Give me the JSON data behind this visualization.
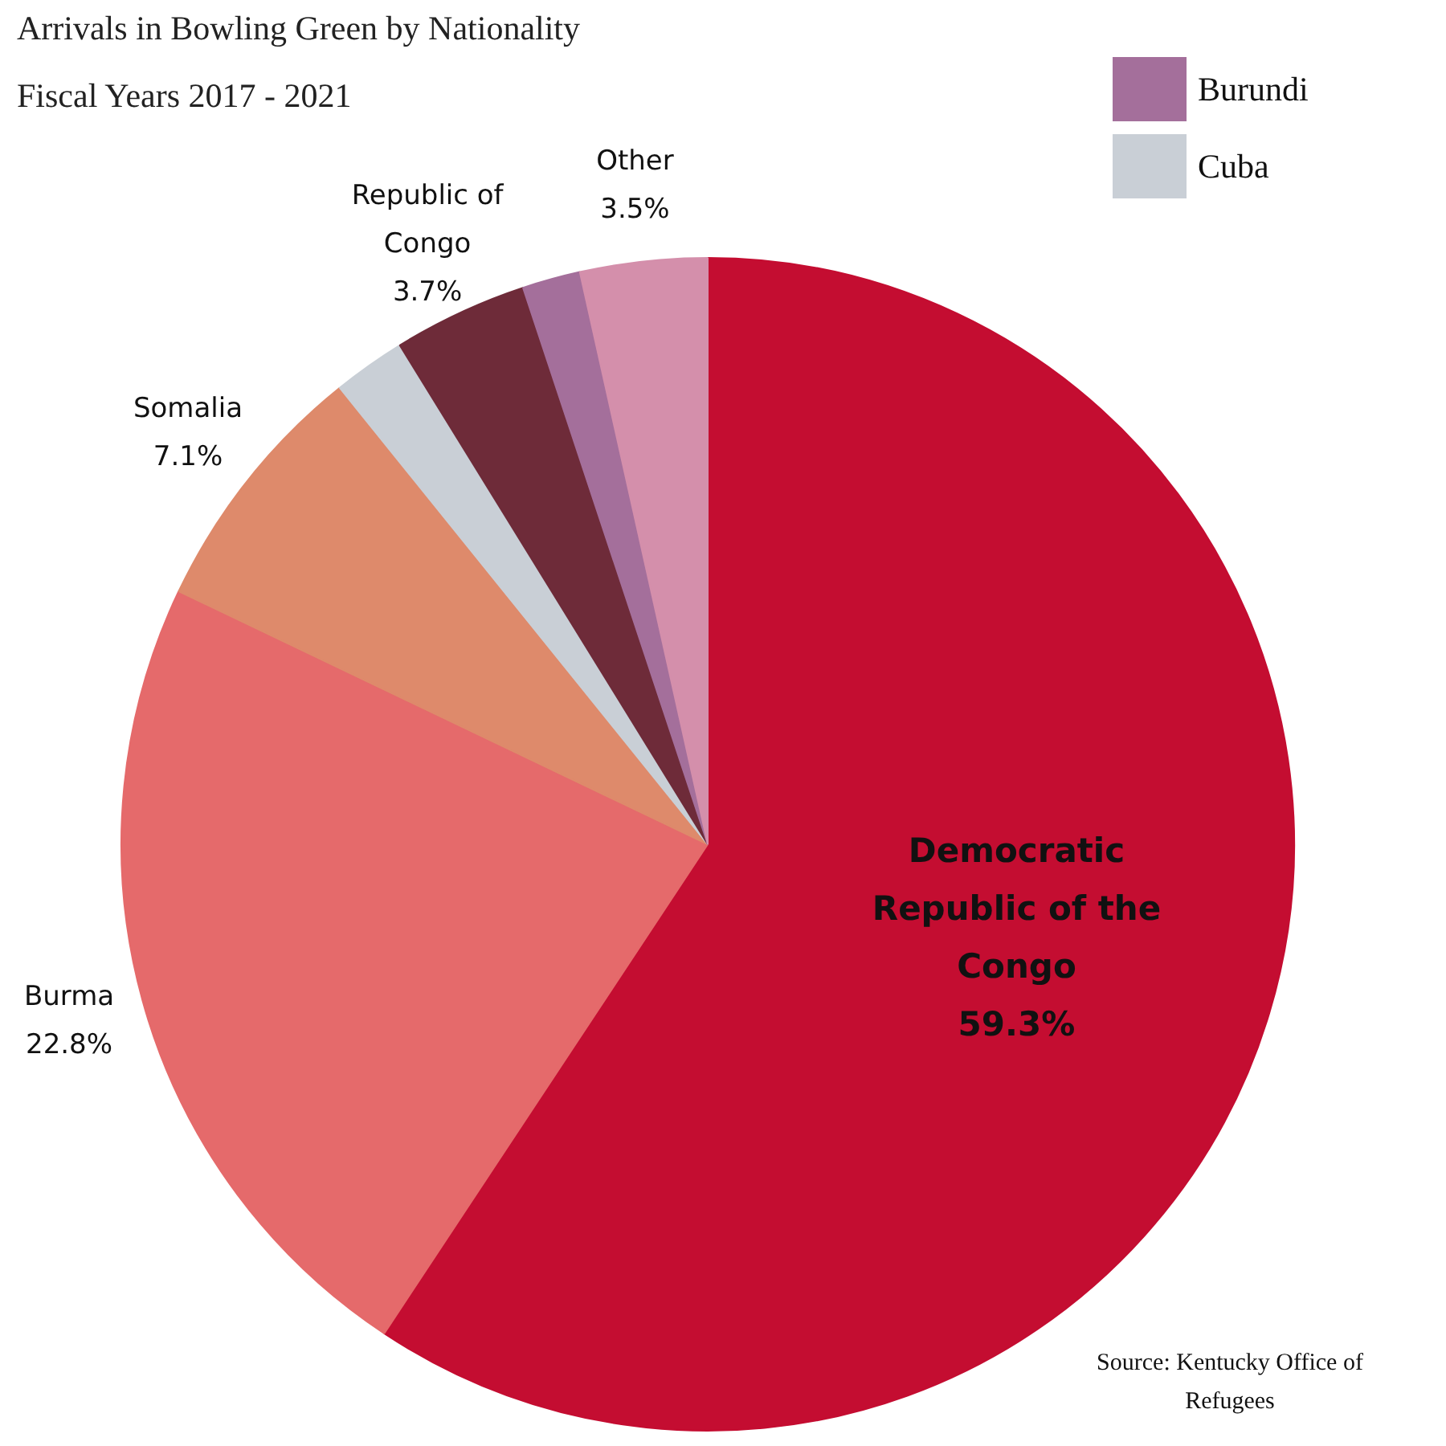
{
  "chart_data": {
    "type": "pie",
    "title": "Arrivals in Bowling Green by Nationality",
    "subtitle": "Fiscal Years 2017 - 2021",
    "categories": [
      "Democratic Republic of the Congo",
      "Burma",
      "Somalia",
      "Cuba",
      "Republic of Congo",
      "Burundi",
      "Other"
    ],
    "values": [
      59.3,
      22.8,
      7.1,
      2.0,
      3.7,
      1.6,
      3.5
    ],
    "colors": [
      "#c40d31",
      "#e56a6b",
      "#de8a6b",
      "#c9cfd6",
      "#6e2b39",
      "#a46f9b",
      "#d48fab"
    ],
    "value_labels": [
      "59.3%",
      "22.8%",
      "7.1%",
      null,
      "3.7%",
      null,
      "3.5%"
    ],
    "legend": "top right",
    "annotations": [
      "Source: Kentucky Office of Refugees"
    ]
  }
}
